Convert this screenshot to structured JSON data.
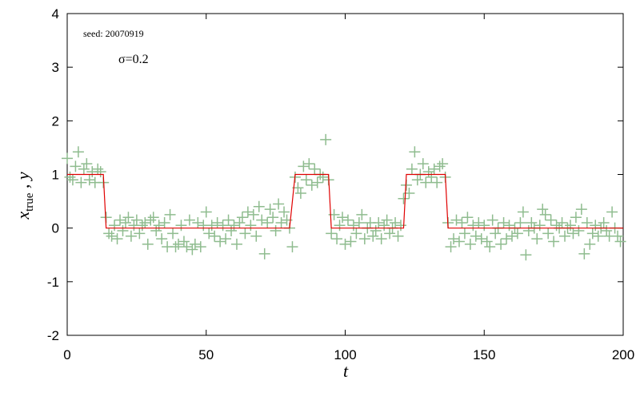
{
  "chart_data": {
    "type": "scatter_line",
    "annotations": [
      "seed: 20070919",
      "σ=0.2"
    ],
    "xlabel": "t",
    "ylabel": "x",
    "ylabel_sub": "true",
    "ylabel_rest": " , y",
    "xlim": [
      0,
      200
    ],
    "ylim": [
      -2,
      4
    ],
    "xticks": [
      0,
      50,
      100,
      150,
      200
    ],
    "yticks": [
      -2,
      -1,
      0,
      1,
      2,
      3,
      4
    ],
    "series": [
      {
        "name": "x_true",
        "kind": "line",
        "color": "#e00000",
        "x": [
          0,
          13,
          14,
          80,
          82,
          94,
          95,
          121,
          122,
          136,
          137,
          200
        ],
        "values": [
          1,
          1,
          0,
          0,
          1,
          1,
          0,
          0,
          1,
          1,
          0,
          0
        ]
      },
      {
        "name": "y",
        "kind": "scatter",
        "color": "#8fbc8f",
        "x": [
          0,
          1,
          2,
          3,
          4,
          5,
          6,
          7,
          8,
          9,
          10,
          11,
          12,
          13,
          14,
          15,
          16,
          17,
          18,
          19,
          20,
          21,
          22,
          23,
          24,
          25,
          26,
          27,
          28,
          29,
          30,
          31,
          32,
          33,
          34,
          35,
          36,
          37,
          38,
          39,
          40,
          41,
          42,
          43,
          44,
          45,
          46,
          47,
          48,
          49,
          50,
          51,
          52,
          53,
          54,
          55,
          56,
          57,
          58,
          59,
          60,
          61,
          62,
          63,
          64,
          65,
          66,
          67,
          68,
          69,
          70,
          71,
          72,
          73,
          74,
          75,
          76,
          77,
          78,
          79,
          80,
          81,
          82,
          83,
          84,
          85,
          86,
          87,
          88,
          89,
          90,
          91,
          92,
          93,
          94,
          95,
          96,
          97,
          98,
          99,
          100,
          101,
          102,
          103,
          104,
          105,
          106,
          107,
          108,
          109,
          110,
          111,
          112,
          113,
          114,
          115,
          116,
          117,
          118,
          119,
          120,
          121,
          122,
          123,
          124,
          125,
          126,
          127,
          128,
          129,
          130,
          131,
          132,
          133,
          134,
          135,
          136,
          137,
          138,
          139,
          140,
          141,
          142,
          143,
          144,
          145,
          146,
          147,
          148,
          149,
          150,
          151,
          152,
          153,
          154,
          155,
          156,
          157,
          158,
          159,
          160,
          161,
          162,
          163,
          164,
          165,
          166,
          167,
          168,
          169,
          170,
          171,
          172,
          173,
          174,
          175,
          176,
          177,
          178,
          179,
          180,
          181,
          182,
          183,
          184,
          185,
          186,
          187,
          188,
          189,
          190,
          191,
          192,
          193,
          194,
          195,
          196,
          197,
          198,
          199
        ],
        "values": [
          1.3,
          0.95,
          0.9,
          1.15,
          1.42,
          0.85,
          1.1,
          1.2,
          0.9,
          1.05,
          0.85,
          1.1,
          1.05,
          0.85,
          0.2,
          -0.1,
          -0.15,
          0.05,
          -0.2,
          0.15,
          -0.05,
          0.1,
          0.2,
          -0.15,
          0.05,
          0.15,
          -0.1,
          0.05,
          0.1,
          -0.3,
          0.15,
          0.2,
          -0.05,
          0.05,
          -0.2,
          0.1,
          -0.35,
          0.25,
          -0.1,
          -0.35,
          -0.3,
          0.05,
          -0.25,
          -0.35,
          0.15,
          -0.4,
          -0.3,
          0.1,
          -0.35,
          0.05,
          0.3,
          -0.1,
          0.05,
          -0.15,
          0.1,
          -0.25,
          0.05,
          -0.2,
          0.15,
          -0.05,
          0.05,
          -0.3,
          0.1,
          0.2,
          -0.1,
          0.3,
          0.05,
          0.25,
          -0.15,
          0.4,
          0.15,
          -0.48,
          0.1,
          0.35,
          0.2,
          -0.05,
          0.45,
          0.1,
          0.3,
          0.15,
          0.0,
          -0.35,
          0.95,
          0.75,
          0.65,
          1.15,
          0.9,
          1.2,
          0.8,
          1.1,
          0.85,
          1.0,
          0.95,
          1.65,
          0.9,
          -0.1,
          0.25,
          -0.2,
          0.05,
          0.2,
          -0.3,
          0.15,
          -0.25,
          0.05,
          -0.1,
          0.1,
          0.25,
          -0.2,
          0.0,
          0.1,
          -0.15,
          -0.05,
          0.1,
          -0.2,
          0.05,
          0.15,
          -0.1,
          0.0,
          0.1,
          -0.15,
          0.05,
          0.55,
          0.8,
          0.65,
          1.1,
          1.42,
          0.9,
          1.0,
          1.2,
          0.85,
          1.05,
          0.95,
          1.1,
          0.85,
          1.15,
          1.2,
          0.95,
          0.1,
          -0.35,
          -0.2,
          0.15,
          -0.25,
          0.1,
          -0.1,
          0.2,
          -0.3,
          0.05,
          -0.15,
          0.1,
          -0.2,
          0.05,
          -0.25,
          -0.35,
          0.15,
          -0.1,
          0.0,
          -0.3,
          0.1,
          -0.2,
          0.05,
          -0.15,
          0.0,
          -0.1,
          0.1,
          0.3,
          -0.5,
          -0.05,
          0.1,
          0.0,
          -0.2,
          0.05,
          0.35,
          0.25,
          -0.1,
          0.15,
          -0.25,
          0.05,
          0.0,
          0.1,
          -0.15,
          0.0,
          0.05,
          -0.1,
          0.2,
          -0.05,
          0.35,
          -0.48,
          0.1,
          -0.3,
          -0.1,
          0.05,
          -0.15,
          0.0,
          0.1,
          -0.05,
          -0.15,
          0.3,
          0.0,
          -0.15,
          -0.25
        ]
      }
    ]
  }
}
